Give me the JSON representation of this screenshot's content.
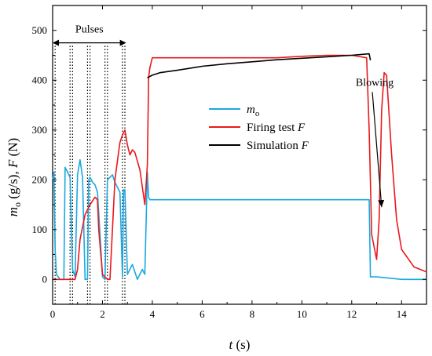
{
  "chart_data": {
    "type": "line",
    "xlabel": "t (s)",
    "ylabel": "m_o (g/s), F (N)",
    "xlim": [
      0,
      15
    ],
    "ylim": [
      -50,
      550
    ],
    "xticks": [
      0,
      2,
      4,
      6,
      8,
      10,
      12,
      14
    ],
    "yticks": [
      0,
      100,
      200,
      300,
      400,
      500
    ],
    "grid": false,
    "legend_position": "center-right",
    "colors": {
      "m_o": "#1ba8e0",
      "firing": "#e8191c",
      "simulation": "#000000"
    },
    "legend": [
      {
        "id": "m_o",
        "base": "m",
        "sub": "o",
        "suffix": ""
      },
      {
        "id": "firing",
        "base": "Firing test ",
        "sub": "",
        "suffix": "F"
      },
      {
        "id": "simulation",
        "base": "Simulation ",
        "sub": "",
        "suffix": "F"
      }
    ],
    "pulse_lines_x": [
      0.1,
      0.7,
      0.8,
      1.4,
      1.5,
      2.1,
      2.2,
      2.8,
      2.9
    ],
    "annotations": {
      "pulses": {
        "text": "Pulses",
        "x_start": 0.0,
        "x_end": 2.95,
        "y": 475
      },
      "blowing": {
        "text": "Blowing",
        "x": 13.3,
        "y": 395,
        "arrow_to": [
          13.2,
          145
        ]
      }
    },
    "series": [
      {
        "id": "m_o",
        "name": "m_o",
        "x": [
          0,
          0.05,
          0.1,
          0.15,
          0.3,
          0.45,
          0.5,
          0.55,
          0.7,
          0.8,
          0.9,
          1.0,
          1.1,
          1.2,
          1.3,
          1.4,
          1.45,
          1.5,
          1.6,
          1.7,
          1.8,
          2.0,
          2.1,
          2.2,
          2.4,
          2.5,
          2.6,
          2.7,
          2.8,
          2.85,
          2.9,
          3.0,
          3.2,
          3.4,
          3.6,
          3.7,
          3.8,
          3.85,
          3.9,
          4,
          5,
          6,
          7,
          8,
          9,
          10,
          11,
          12,
          12.6,
          12.7,
          12.75,
          12.8,
          13.0,
          14,
          15
        ],
        "y": [
          200,
          215,
          60,
          10,
          0,
          0,
          225,
          220,
          205,
          20,
          5,
          210,
          240,
          205,
          0,
          0,
          200,
          205,
          195,
          190,
          175,
          5,
          0,
          200,
          210,
          195,
          185,
          175,
          5,
          180,
          180,
          10,
          30,
          0,
          20,
          10,
          215,
          165,
          160,
          160,
          160,
          160,
          160,
          160,
          160,
          160,
          160,
          160,
          160,
          160,
          5,
          5,
          5,
          0,
          0
        ]
      },
      {
        "id": "firing",
        "name": "Firing test F",
        "x": [
          0,
          0.5,
          0.9,
          1.0,
          1.1,
          1.3,
          1.5,
          1.7,
          1.8,
          1.85,
          2.0,
          2.2,
          2.3,
          2.5,
          2.7,
          2.8,
          2.9,
          3.0,
          3.1,
          3.2,
          3.3,
          3.5,
          3.7,
          3.8,
          3.85,
          3.9,
          4.0,
          5,
          6,
          7,
          8,
          9,
          10,
          11,
          12,
          12.6,
          12.7,
          12.8,
          13.0,
          13.1,
          13.2,
          13.3,
          13.4,
          13.6,
          13.8,
          14.0,
          14.5,
          15.0
        ],
        "y": [
          0,
          0,
          0,
          20,
          80,
          130,
          150,
          165,
          160,
          100,
          10,
          0,
          0,
          200,
          275,
          290,
          300,
          270,
          250,
          260,
          255,
          220,
          150,
          230,
          405,
          425,
          445,
          445,
          445,
          445,
          445,
          445,
          448,
          450,
          450,
          445,
          300,
          90,
          40,
          120,
          340,
          415,
          410,
          250,
          120,
          60,
          25,
          15
        ]
      },
      {
        "id": "simulation",
        "name": "Simulation F",
        "x": [
          3.8,
          4.0,
          4.3,
          5,
          6,
          7,
          8,
          9,
          10,
          11,
          12,
          12.7,
          12.75
        ],
        "y": [
          405,
          410,
          415,
          420,
          428,
          433,
          437,
          441,
          444,
          447,
          450,
          453,
          440
        ]
      }
    ]
  }
}
